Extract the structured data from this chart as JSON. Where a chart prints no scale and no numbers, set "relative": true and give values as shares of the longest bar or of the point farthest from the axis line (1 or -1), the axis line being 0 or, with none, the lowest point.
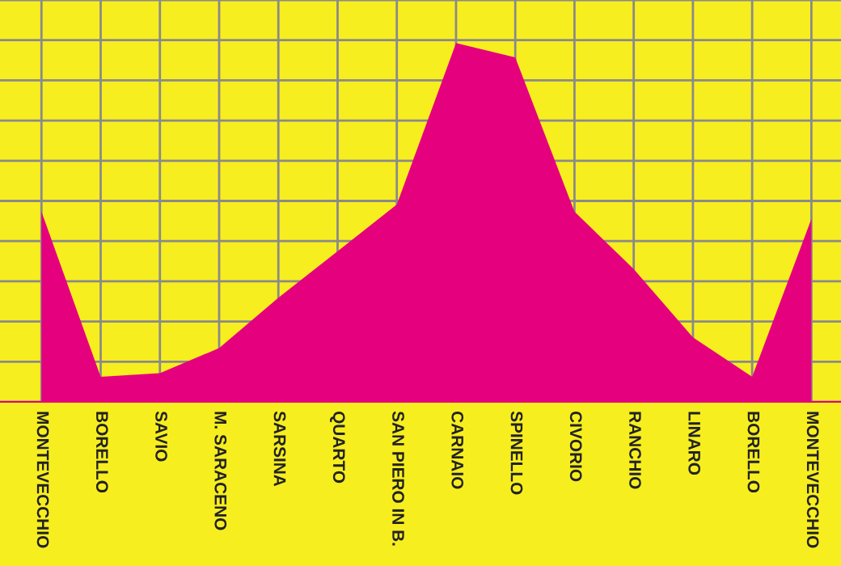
{
  "chart_data": {
    "type": "area",
    "relative": true,
    "grid": true,
    "categories": [
      "MONTEVECCHIO",
      "BORELLO",
      "SAVIO",
      "M. SARACENO",
      "SARSINA",
      "QUARTO",
      "SAN PIERO IN B.",
      "CARNAIO",
      "SPINELLO",
      "CIVORIO",
      "RANCHIO",
      "LINARO",
      "BORELLO",
      "MONTEVECCHIO"
    ],
    "series": [
      {
        "color": "#e5007e",
        "values": [
          0.53,
          0.07,
          0.08,
          0.15,
          0.29,
          0.42,
          0.55,
          1,
          0.96,
          0.53,
          0.37,
          0.18,
          0.07,
          0.51
        ]
      }
    ]
  }
}
